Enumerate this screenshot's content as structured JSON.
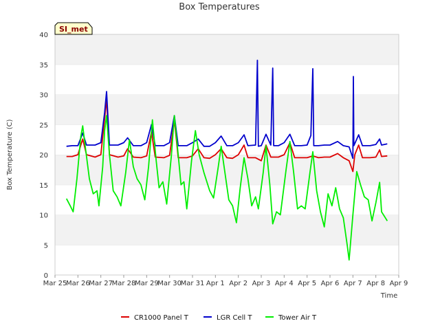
{
  "chart_data": {
    "type": "line",
    "title": "Box Temperatures",
    "xlabel": "Time",
    "ylabel": "Box Temperature (C)",
    "ylim": [
      0,
      40
    ],
    "yticks": [
      0,
      5,
      10,
      15,
      20,
      25,
      30,
      35,
      40
    ],
    "xlim": [
      "2024-03-25",
      "2024-04-09"
    ],
    "xtick_labels": [
      "Mar 25",
      "Mar 26",
      "Mar 27",
      "Mar 28",
      "Mar 29",
      "Mar 30",
      "Mar 31",
      "Apr 1",
      "Apr 2",
      "Apr 3",
      "Apr 4",
      "Apr 5",
      "Apr 6",
      "Apr 7",
      "Apr 8",
      "Apr 9"
    ],
    "grid": "horizontal bands",
    "legend_position": "bottom",
    "site_badge": "SI_met",
    "series": [
      {
        "name": "CR1000 Panel T",
        "color": "#dd0000",
        "points": [
          [
            "2024-03-25 12:00",
            19.7
          ],
          [
            "2024-03-25 18:00",
            19.7
          ],
          [
            "2024-03-26 00:00",
            20.0
          ],
          [
            "2024-03-26 05:00",
            22.6
          ],
          [
            "2024-03-26 09:00",
            20.0
          ],
          [
            "2024-03-26 18:00",
            19.6
          ],
          [
            "2024-03-27 00:00",
            20.0
          ],
          [
            "2024-03-27 04:00",
            26.0
          ],
          [
            "2024-03-27 06:00",
            29.3
          ],
          [
            "2024-03-27 09:00",
            20.0
          ],
          [
            "2024-03-27 18:00",
            19.6
          ],
          [
            "2024-03-28 00:00",
            19.8
          ],
          [
            "2024-03-28 04:00",
            21.0
          ],
          [
            "2024-03-28 10:00",
            19.6
          ],
          [
            "2024-03-28 18:00",
            19.5
          ],
          [
            "2024-03-29 00:00",
            19.8
          ],
          [
            "2024-03-29 05:00",
            23.8
          ],
          [
            "2024-03-29 09:00",
            19.6
          ],
          [
            "2024-03-29 18:00",
            19.5
          ],
          [
            "2024-03-30 00:00",
            19.9
          ],
          [
            "2024-03-30 05:00",
            25.8
          ],
          [
            "2024-03-30 09:00",
            19.5
          ],
          [
            "2024-03-30 18:00",
            19.5
          ],
          [
            "2024-03-31 00:00",
            19.8
          ],
          [
            "2024-03-31 06:00",
            21.0
          ],
          [
            "2024-03-31 12:00",
            19.5
          ],
          [
            "2024-03-31 18:00",
            19.4
          ],
          [
            "2024-04-01 00:00",
            20.0
          ],
          [
            "2024-04-01 06:00",
            21.0
          ],
          [
            "2024-04-01 12:00",
            19.5
          ],
          [
            "2024-04-01 18:00",
            19.4
          ],
          [
            "2024-04-02 00:00",
            20.0
          ],
          [
            "2024-04-02 06:00",
            21.6
          ],
          [
            "2024-04-02 10:00",
            19.5
          ],
          [
            "2024-04-02 18:00",
            19.5
          ],
          [
            "2024-04-03 00:00",
            19.0
          ],
          [
            "2024-04-03 05:00",
            21.6
          ],
          [
            "2024-04-03 10:00",
            19.6
          ],
          [
            "2024-04-03 18:00",
            19.6
          ],
          [
            "2024-04-04 00:00",
            20.0
          ],
          [
            "2024-04-04 06:00",
            22.0
          ],
          [
            "2024-04-04 11:00",
            19.5
          ],
          [
            "2024-04-04 18:00",
            19.5
          ],
          [
            "2024-04-05 00:00",
            19.5
          ],
          [
            "2024-04-05 06:00",
            19.8
          ],
          [
            "2024-04-05 12:00",
            19.5
          ],
          [
            "2024-04-05 18:00",
            19.6
          ],
          [
            "2024-04-06 00:00",
            19.6
          ],
          [
            "2024-04-06 08:00",
            20.2
          ],
          [
            "2024-04-06 14:00",
            19.5
          ],
          [
            "2024-04-06 20:00",
            19.0
          ],
          [
            "2024-04-07 00:00",
            17.2
          ],
          [
            "2024-04-07 02:00",
            20.0
          ],
          [
            "2024-04-07 06:00",
            21.6
          ],
          [
            "2024-04-07 10:00",
            19.5
          ],
          [
            "2024-04-07 18:00",
            19.5
          ],
          [
            "2024-04-08 00:00",
            19.6
          ],
          [
            "2024-04-08 04:00",
            20.8
          ],
          [
            "2024-04-08 06:00",
            19.7
          ],
          [
            "2024-04-08 12:00",
            19.8
          ]
        ]
      },
      {
        "name": "LGR Cell T",
        "color": "#0000cc",
        "points": [
          [
            "2024-03-25 12:00",
            21.4
          ],
          [
            "2024-03-25 18:00",
            21.5
          ],
          [
            "2024-03-26 00:00",
            21.5
          ],
          [
            "2024-03-26 05:00",
            23.6
          ],
          [
            "2024-03-26 09:00",
            21.6
          ],
          [
            "2024-03-26 18:00",
            21.6
          ],
          [
            "2024-03-27 00:00",
            22.0
          ],
          [
            "2024-03-27 04:00",
            27.0
          ],
          [
            "2024-03-27 06:00",
            30.5
          ],
          [
            "2024-03-27 09:00",
            21.6
          ],
          [
            "2024-03-27 18:00",
            21.6
          ],
          [
            "2024-03-28 00:00",
            22.0
          ],
          [
            "2024-03-28 04:00",
            22.8
          ],
          [
            "2024-03-28 10:00",
            21.5
          ],
          [
            "2024-03-28 18:00",
            21.5
          ],
          [
            "2024-03-29 00:00",
            22.0
          ],
          [
            "2024-03-29 05:00",
            25.0
          ],
          [
            "2024-03-29 09:00",
            21.5
          ],
          [
            "2024-03-29 18:00",
            21.5
          ],
          [
            "2024-03-30 00:00",
            22.0
          ],
          [
            "2024-03-30 05:00",
            26.5
          ],
          [
            "2024-03-30 09:00",
            21.5
          ],
          [
            "2024-03-30 18:00",
            21.5
          ],
          [
            "2024-03-31 00:00",
            22.0
          ],
          [
            "2024-03-31 06:00",
            22.6
          ],
          [
            "2024-03-31 12:00",
            21.4
          ],
          [
            "2024-03-31 18:00",
            21.4
          ],
          [
            "2024-04-01 00:00",
            22.0
          ],
          [
            "2024-04-01 06:00",
            23.1
          ],
          [
            "2024-04-01 12:00",
            21.5
          ],
          [
            "2024-04-01 18:00",
            21.5
          ],
          [
            "2024-04-02 00:00",
            22.0
          ],
          [
            "2024-04-02 06:00",
            23.3
          ],
          [
            "2024-04-02 10:00",
            21.5
          ],
          [
            "2024-04-02 18:00",
            21.6
          ],
          [
            "2024-04-02 20:00",
            35.7
          ],
          [
            "2024-04-02 21:00",
            21.4
          ],
          [
            "2024-04-03 00:00",
            21.5
          ],
          [
            "2024-04-03 05:00",
            23.4
          ],
          [
            "2024-04-03 10:00",
            21.6
          ],
          [
            "2024-04-03 12:00",
            34.4
          ],
          [
            "2024-04-03 13:00",
            21.5
          ],
          [
            "2024-04-03 18:00",
            21.5
          ],
          [
            "2024-04-04 00:00",
            22.0
          ],
          [
            "2024-04-04 06:00",
            23.4
          ],
          [
            "2024-04-04 11:00",
            21.5
          ],
          [
            "2024-04-04 18:00",
            21.5
          ],
          [
            "2024-04-05 00:00",
            21.6
          ],
          [
            "2024-04-05 04:00",
            23.2
          ],
          [
            "2024-04-05 06:00",
            34.3
          ],
          [
            "2024-04-05 07:00",
            21.5
          ],
          [
            "2024-04-05 12:00",
            21.5
          ],
          [
            "2024-04-05 18:00",
            21.6
          ],
          [
            "2024-04-06 00:00",
            21.6
          ],
          [
            "2024-04-06 08:00",
            22.2
          ],
          [
            "2024-04-06 14:00",
            21.5
          ],
          [
            "2024-04-06 20:00",
            21.3
          ],
          [
            "2024-04-07 00:00",
            19.4
          ],
          [
            "2024-04-07 00:30",
            33.0
          ],
          [
            "2024-04-07 01:00",
            21.5
          ],
          [
            "2024-04-07 06:00",
            23.3
          ],
          [
            "2024-04-07 10:00",
            21.5
          ],
          [
            "2024-04-07 18:00",
            21.5
          ],
          [
            "2024-04-08 00:00",
            21.7
          ],
          [
            "2024-04-08 04:00",
            22.6
          ],
          [
            "2024-04-08 06:00",
            21.6
          ],
          [
            "2024-04-08 12:00",
            21.8
          ]
        ]
      },
      {
        "name": "Tower Air T",
        "color": "#00ee00",
        "points": [
          [
            "2024-03-25 12:00",
            12.7
          ],
          [
            "2024-03-25 16:00",
            11.5
          ],
          [
            "2024-03-25 19:00",
            10.5
          ],
          [
            "2024-03-25 23:00",
            16.0
          ],
          [
            "2024-03-26 03:00",
            23.0
          ],
          [
            "2024-03-26 05:00",
            24.8
          ],
          [
            "2024-03-26 08:00",
            21.0
          ],
          [
            "2024-03-26 12:00",
            16.0
          ],
          [
            "2024-03-26 16:00",
            13.5
          ],
          [
            "2024-03-26 20:00",
            14.0
          ],
          [
            "2024-03-26 22:00",
            11.5
          ],
          [
            "2024-03-27 02:00",
            18.0
          ],
          [
            "2024-03-27 04:00",
            24.0
          ],
          [
            "2024-03-27 06:00",
            26.5
          ],
          [
            "2024-03-27 09:00",
            20.0
          ],
          [
            "2024-03-27 13:00",
            14.0
          ],
          [
            "2024-03-27 17:00",
            13.0
          ],
          [
            "2024-03-27 21:00",
            11.5
          ],
          [
            "2024-03-28 02:00",
            17.0
          ],
          [
            "2024-03-28 06:00",
            22.5
          ],
          [
            "2024-03-28 10:00",
            18.0
          ],
          [
            "2024-03-28 14:00",
            16.0
          ],
          [
            "2024-03-28 18:00",
            15.0
          ],
          [
            "2024-03-28 22:00",
            12.5
          ],
          [
            "2024-03-29 02:00",
            18.0
          ],
          [
            "2024-03-29 06:00",
            25.8
          ],
          [
            "2024-03-29 10:00",
            19.0
          ],
          [
            "2024-03-29 13:00",
            14.5
          ],
          [
            "2024-03-29 17:00",
            15.5
          ],
          [
            "2024-03-29 21:00",
            11.8
          ],
          [
            "2024-03-30 02:00",
            20.0
          ],
          [
            "2024-03-30 05:00",
            26.5
          ],
          [
            "2024-03-30 09:00",
            20.0
          ],
          [
            "2024-03-30 12:00",
            15.0
          ],
          [
            "2024-03-30 15:00",
            15.5
          ],
          [
            "2024-03-30 18:00",
            11.0
          ],
          [
            "2024-03-30 23:00",
            19.0
          ],
          [
            "2024-03-31 03:00",
            24.0
          ],
          [
            "2024-03-31 07:00",
            20.0
          ],
          [
            "2024-03-31 12:00",
            17.0
          ],
          [
            "2024-03-31 18:00",
            14.0
          ],
          [
            "2024-03-31 22:00",
            12.8
          ],
          [
            "2024-04-01 03:00",
            18.0
          ],
          [
            "2024-04-01 06:00",
            21.4
          ],
          [
            "2024-04-01 10:00",
            17.0
          ],
          [
            "2024-04-01 14:00",
            12.5
          ],
          [
            "2024-04-01 18:00",
            11.5
          ],
          [
            "2024-04-01 22:00",
            8.7
          ],
          [
            "2024-04-02 02:00",
            14.5
          ],
          [
            "2024-04-02 06:00",
            19.5
          ],
          [
            "2024-04-02 10:00",
            16.0
          ],
          [
            "2024-04-02 14:00",
            11.5
          ],
          [
            "2024-04-02 18:00",
            13.0
          ],
          [
            "2024-04-02 21:00",
            11.0
          ],
          [
            "2024-04-03 02:00",
            17.0
          ],
          [
            "2024-04-03 05:00",
            21.5
          ],
          [
            "2024-04-03 09:00",
            15.0
          ],
          [
            "2024-04-03 12:00",
            8.5
          ],
          [
            "2024-04-03 16:00",
            10.5
          ],
          [
            "2024-04-03 20:00",
            10.0
          ],
          [
            "2024-04-04 02:00",
            17.5
          ],
          [
            "2024-04-04 06:00",
            22.2
          ],
          [
            "2024-04-04 10:00",
            17.0
          ],
          [
            "2024-04-04 14:00",
            11.0
          ],
          [
            "2024-04-04 18:00",
            11.5
          ],
          [
            "2024-04-04 22:00",
            11.0
          ],
          [
            "2024-04-05 03:00",
            17.0
          ],
          [
            "2024-04-05 06:00",
            20.5
          ],
          [
            "2024-04-05 10:00",
            14.0
          ],
          [
            "2024-04-05 14:00",
            10.5
          ],
          [
            "2024-04-05 18:00",
            8.0
          ],
          [
            "2024-04-05 22:00",
            13.5
          ],
          [
            "2024-04-06 02:00",
            11.5
          ],
          [
            "2024-04-06 06:00",
            14.5
          ],
          [
            "2024-04-06 10:00",
            11.0
          ],
          [
            "2024-04-06 14:00",
            9.5
          ],
          [
            "2024-04-06 18:00",
            5.0
          ],
          [
            "2024-04-06 20:00",
            2.5
          ],
          [
            "2024-04-07 00:00",
            10.0
          ],
          [
            "2024-04-07 04:00",
            17.2
          ],
          [
            "2024-04-07 08:00",
            15.0
          ],
          [
            "2024-04-07 12:00",
            13.0
          ],
          [
            "2024-04-07 16:00",
            12.5
          ],
          [
            "2024-04-07 20:00",
            9.0
          ],
          [
            "2024-04-08 00:00",
            12.0
          ],
          [
            "2024-04-08 04:00",
            15.4
          ],
          [
            "2024-04-08 06:00",
            10.5
          ],
          [
            "2024-04-08 08:00",
            10.0
          ],
          [
            "2024-04-08 12:00",
            9.0
          ]
        ]
      }
    ]
  }
}
